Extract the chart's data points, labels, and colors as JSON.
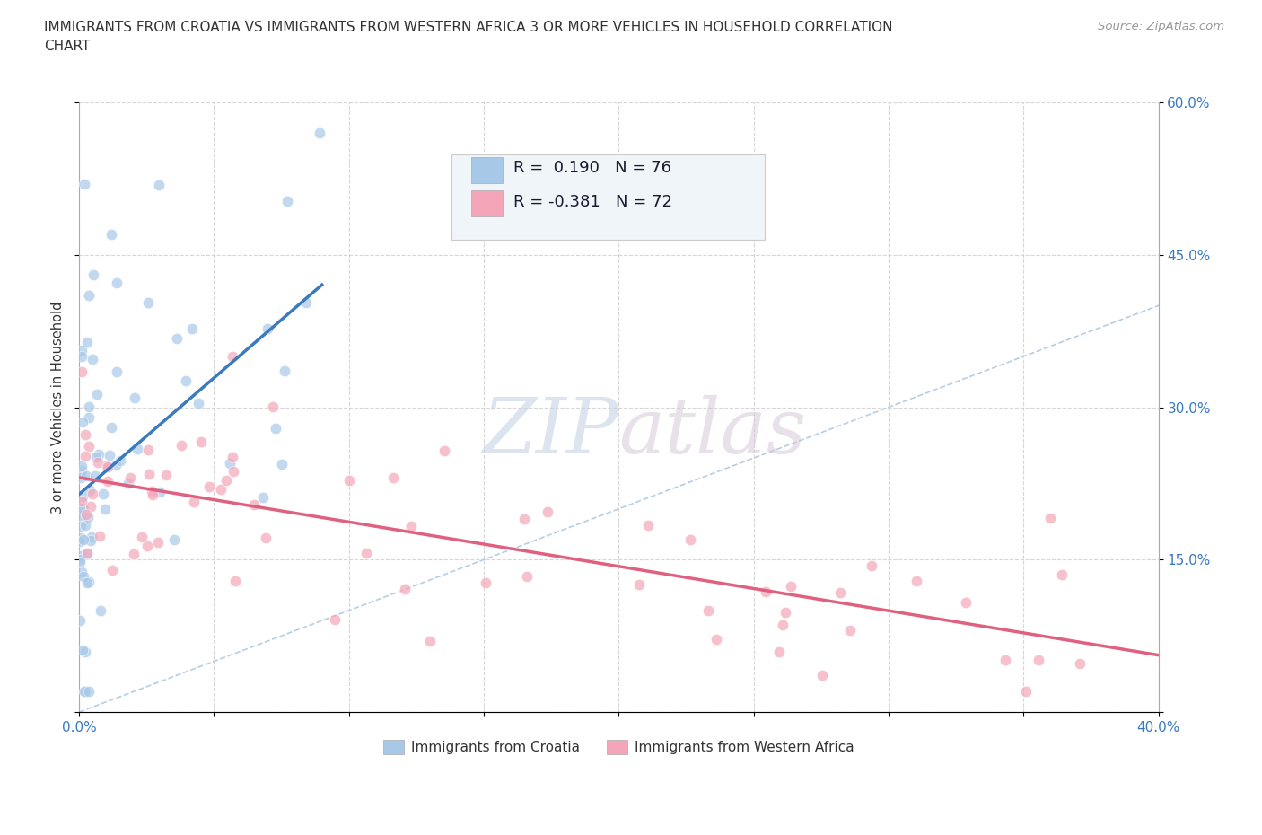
{
  "title_line1": "IMMIGRANTS FROM CROATIA VS IMMIGRANTS FROM WESTERN AFRICA 3 OR MORE VEHICLES IN HOUSEHOLD CORRELATION",
  "title_line2": "CHART",
  "source_text": "Source: ZipAtlas.com",
  "ylabel_label": "3 or more Vehicles in Household",
  "x_min": 0.0,
  "x_max": 0.4,
  "y_min": 0.0,
  "y_max": 0.6,
  "croatia_R": 0.19,
  "croatia_N": 76,
  "western_africa_R": -0.381,
  "western_africa_N": 72,
  "croatia_color": "#a8c8e8",
  "western_africa_color": "#f4a6b8",
  "croatia_trendline_color": "#3a7abf",
  "western_africa_trendline_color": "#e06080",
  "diagonal_line_color": "#b0c8e0",
  "watermark_color": "#d0dde8",
  "legend_bg_color": "#f0f5fa",
  "legend_border_color": "#cccccc"
}
